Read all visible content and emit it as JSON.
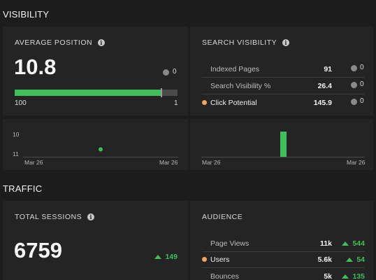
{
  "visibility": {
    "section_title": "VISIBILITY",
    "average_position": {
      "title": "AVERAGE POSITION",
      "value": "10.8",
      "count": "0",
      "bar_fill_fraction": 0.9,
      "bar_left_label": "100",
      "bar_right_label": "1"
    },
    "search_visibility": {
      "title": "SEARCH VISIBILITY",
      "rows": [
        {
          "label": "Indexed Pages",
          "value": "91",
          "count": "0"
        },
        {
          "label": "Search Visibility %",
          "value": "26.4",
          "count": "0"
        },
        {
          "label": "Click Potential",
          "value": "145.9",
          "count": "0"
        }
      ]
    },
    "position_chart": {
      "y_ticks": [
        "10",
        "11"
      ],
      "x_start": "Mar 26",
      "x_end": "Mar 26"
    },
    "visibility_chart": {
      "x_start": "Mar 26",
      "x_end": "Mar 26"
    }
  },
  "traffic": {
    "section_title": "TRAFFIC",
    "total_sessions": {
      "title": "TOTAL SESSIONS",
      "value": "6759",
      "delta": "149"
    },
    "audience": {
      "title": "AUDIENCE",
      "rows": [
        {
          "label": "Page Views",
          "value": "11k",
          "delta": "544"
        },
        {
          "label": "Users",
          "value": "5.6k",
          "delta": "54"
        },
        {
          "label": "Bounces",
          "value": "5k",
          "delta": "135"
        }
      ]
    }
  },
  "colors": {
    "accent_green": "#3fbf5a",
    "orange": "#f2a654",
    "background": "#1c1c1c",
    "card": "#242424"
  },
  "icons": [
    "info-icon",
    "gray-dot-icon",
    "orange-dot-icon",
    "triangle-up-icon"
  ],
  "chart_data": [
    {
      "type": "scatter",
      "x": [
        "Mar 26"
      ],
      "y": [
        10.8
      ],
      "y_ticks": [
        "10",
        "11"
      ],
      "ylim": [
        11,
        10
      ],
      "x_tick_labels": [
        "Mar 26",
        "Mar 26"
      ]
    },
    {
      "type": "bar",
      "categories": [
        "Mar 26"
      ],
      "values": [
        1
      ],
      "x_tick_labels": [
        "Mar 26",
        "Mar 26"
      ]
    }
  ]
}
